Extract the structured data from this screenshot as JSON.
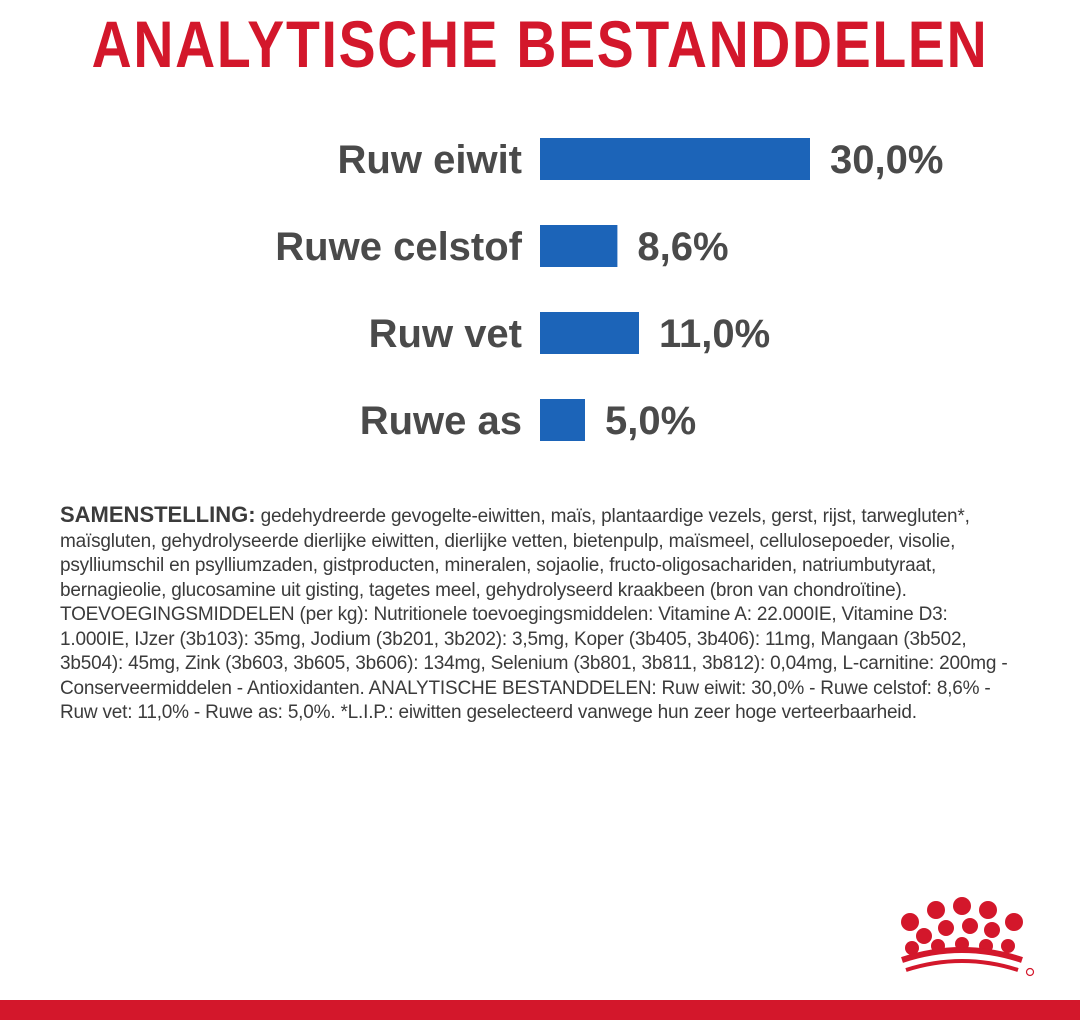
{
  "title": "ANALYTISCHE BESTANDDELEN",
  "chart_data": {
    "type": "bar",
    "orientation": "horizontal",
    "categories": [
      "Ruw eiwit",
      "Ruwe celstof",
      "Ruw vet",
      "Ruwe as"
    ],
    "values": [
      30.0,
      8.6,
      11.0,
      5.0
    ],
    "value_labels": [
      "30,0%",
      "8,6%",
      "11,0%",
      "5,0%"
    ],
    "unit": "%",
    "xlim": [
      0,
      30
    ],
    "grid": false,
    "legend": "none",
    "bar_color": "#1c64b8",
    "label_color": "#4a4a4a"
  },
  "composition": {
    "lead": "SAMENSTELLING:",
    "text": " gedehydreerde gevogelte-eiwitten, maïs, plantaardige vezels, gerst, rijst, tarwegluten*, maïsgluten, gehydrolyseerde dierlijke eiwitten, dierlijke vetten, bietenpulp, maïsmeel, cellulosepoeder, visolie, psylliumschil en psylliumzaden, gistproducten, mineralen, sojaolie, fructo-oligosachariden, natriumbutyraat, bernagieolie, glucosamine uit gisting, tagetes meel, gehydrolyseerd kraakbeen (bron van chondroïtine). TOEVOEGINGSMIDDELEN (per kg): Nutritionele toevoegingsmiddelen: Vitamine A: 22.000IE, Vitamine D3: 1.000IE, IJzer (3b103): 35mg, Jodium (3b201, 3b202): 3,5mg, Koper (3b405, 3b406): 11mg, Mangaan (3b502, 3b504): 45mg, Zink (3b603, 3b605, 3b606): 134mg, Selenium (3b801, 3b811, 3b812): 0,04mg, L-carnitine: 200mg - Conserveermiddelen - Antioxidanten. ANALYTISCHE BESTANDDELEN: Ruw eiwit: 30,0% - Ruwe celstof: 8,6% - Ruw vet: 11,0% - Ruwe as: 5,0%. *L.I.P.: eiwitten geselecteerd vanwege hun zeer hoge verteerbaarheid."
  },
  "colors": {
    "brand_red": "#d3172b",
    "bar_blue": "#1c64b8",
    "text_gray": "#3b3b3b"
  },
  "logo": {
    "name": "crown-logo-icon"
  }
}
